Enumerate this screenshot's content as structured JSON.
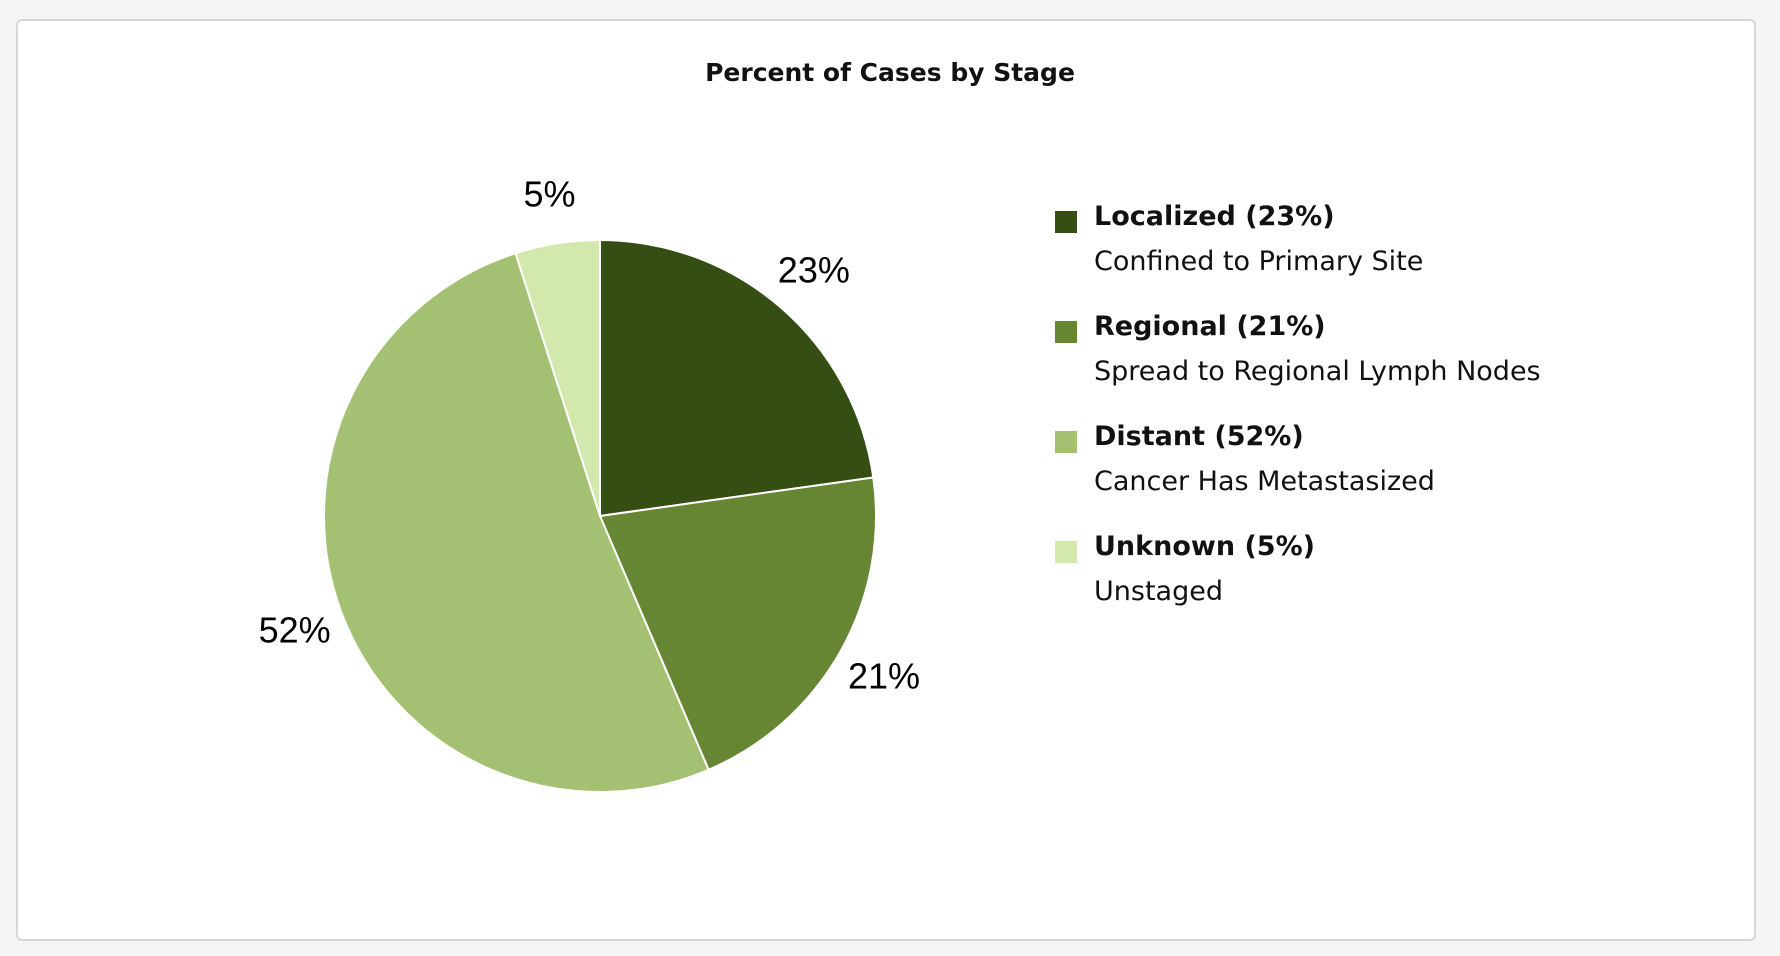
{
  "chart_data": {
    "type": "pie",
    "title": "Percent of Cases by Stage",
    "slices": [
      {
        "name": "Localized",
        "value": 23,
        "label": "23%",
        "legend_label": "Localized (23%)",
        "description": "Confined to Primary Site",
        "color": "#354e14"
      },
      {
        "name": "Regional",
        "value": 21,
        "label": "21%",
        "legend_label": "Regional (21%)",
        "description": "Spread to Regional Lymph Nodes",
        "color": "#668634"
      },
      {
        "name": "Distant",
        "value": 52,
        "label": "52%",
        "legend_label": "Distant (52%)",
        "description": "Cancer Has Metastasized",
        "color": "#a4c173"
      },
      {
        "name": "Unknown",
        "value": 5,
        "label": "5%",
        "legend_label": "Unknown (5%)",
        "description": "Unstaged",
        "color": "#d3e8ad"
      }
    ],
    "legend_position": "right",
    "start_angle": "top",
    "direction": "clockwise"
  }
}
